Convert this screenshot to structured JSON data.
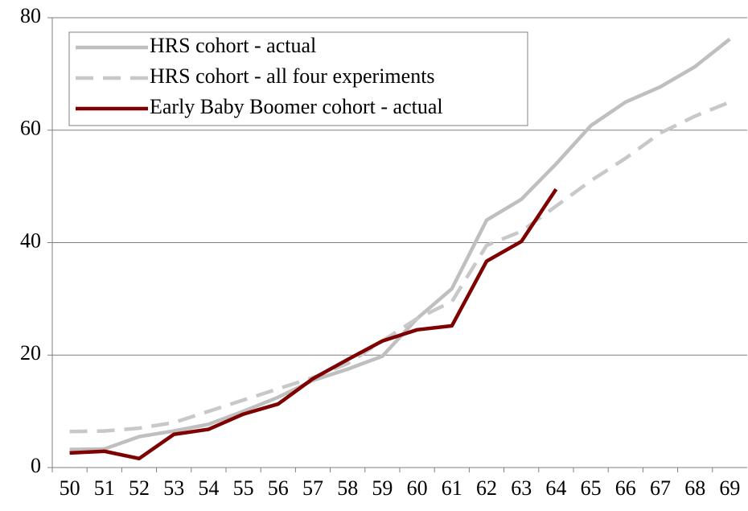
{
  "chart_data": {
    "type": "line",
    "categories": [
      "50",
      "51",
      "52",
      "53",
      "54",
      "55",
      "56",
      "57",
      "58",
      "59",
      "60",
      "61",
      "62",
      "63",
      "64",
      "65",
      "66",
      "67",
      "68",
      "69"
    ],
    "series": [
      {
        "name": "HRS cohort - actual",
        "color": "#bfbfbf",
        "dash": false,
        "values": [
          3.2,
          3.3,
          5.5,
          6.5,
          7.7,
          10,
          12.5,
          15.5,
          17.5,
          19.8,
          26.5,
          31.8,
          44,
          47.7,
          54,
          60.8,
          65,
          67.7,
          71.3,
          76.2
        ]
      },
      {
        "name": "HRS cohort - all four experiments",
        "color": "#c8c8c8",
        "dash": true,
        "values": [
          6.4,
          6.5,
          7,
          8,
          10,
          12,
          14,
          16,
          18.5,
          22.5,
          26.5,
          29.5,
          39.5,
          42,
          46.5,
          51,
          55,
          59.5,
          62.5,
          65
        ]
      },
      {
        "name": "Early Baby Boomer cohort - actual",
        "color": "#7f0000",
        "dash": false,
        "values": [
          2.6,
          2.9,
          1.6,
          5.9,
          6.8,
          9.5,
          11.3,
          15.8,
          19.2,
          22.5,
          24.5,
          25.2,
          36.7,
          40.2,
          49.5,
          null,
          null,
          null,
          null,
          null
        ]
      }
    ],
    "ylim": [
      0,
      80
    ],
    "yticks": [
      0,
      20,
      40,
      60,
      80
    ],
    "grid": true,
    "legend": "upper left"
  }
}
